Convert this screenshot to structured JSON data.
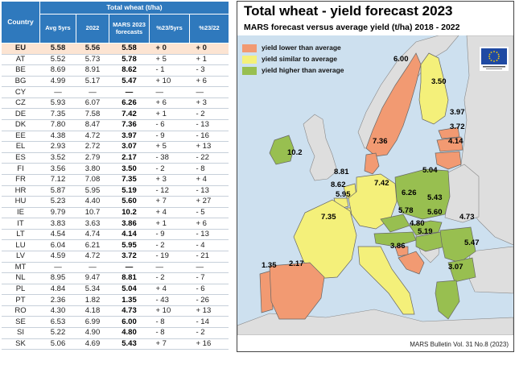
{
  "table": {
    "title": "Total wheat (t/ha)",
    "headers": {
      "country": "Country",
      "avg5": "Avg 5yrs",
      "y2022": "2022",
      "mars": "MARS 2023 forecasts",
      "pct5": "%23/5yrs",
      "pct22": "%23/22"
    }
  },
  "chart_data": {
    "type": "table",
    "title": "Total wheat (t/ha)",
    "columns": [
      "Country",
      "Avg 5yrs",
      "2022",
      "MARS 2023 forecasts",
      "%23/5yrs",
      "%23/22"
    ],
    "rows": [
      {
        "country": "EU",
        "avg5": "5.58",
        "y2022": "5.56",
        "mars": "5.58",
        "pct5": "+ 0",
        "pct22": "+ 0"
      },
      {
        "country": "AT",
        "avg5": "5.52",
        "y2022": "5.73",
        "mars": "5.78",
        "pct5": "+ 5",
        "pct22": "+ 1"
      },
      {
        "country": "BE",
        "avg5": "8.69",
        "y2022": "8.91",
        "mars": "8.62",
        "pct5": "- 1",
        "pct22": "- 3"
      },
      {
        "country": "BG",
        "avg5": "4.99",
        "y2022": "5.17",
        "mars": "5.47",
        "pct5": "+ 10",
        "pct22": "+ 6"
      },
      {
        "country": "CY",
        "avg5": "—",
        "y2022": "—",
        "mars": "—",
        "pct5": "—",
        "pct22": "—"
      },
      {
        "country": "CZ",
        "avg5": "5.93",
        "y2022": "6.07",
        "mars": "6.26",
        "pct5": "+ 6",
        "pct22": "+ 3"
      },
      {
        "country": "DE",
        "avg5": "7.35",
        "y2022": "7.58",
        "mars": "7.42",
        "pct5": "+ 1",
        "pct22": "- 2"
      },
      {
        "country": "DK",
        "avg5": "7.80",
        "y2022": "8.47",
        "mars": "7.36",
        "pct5": "- 6",
        "pct22": "- 13"
      },
      {
        "country": "EE",
        "avg5": "4.38",
        "y2022": "4.72",
        "mars": "3.97",
        "pct5": "- 9",
        "pct22": "- 16"
      },
      {
        "country": "EL",
        "avg5": "2.93",
        "y2022": "2.72",
        "mars": "3.07",
        "pct5": "+ 5",
        "pct22": "+ 13"
      },
      {
        "country": "ES",
        "avg5": "3.52",
        "y2022": "2.79",
        "mars": "2.17",
        "pct5": "- 38",
        "pct22": "- 22"
      },
      {
        "country": "FI",
        "avg5": "3.56",
        "y2022": "3.80",
        "mars": "3.50",
        "pct5": "- 2",
        "pct22": "- 8"
      },
      {
        "country": "FR",
        "avg5": "7.12",
        "y2022": "7.08",
        "mars": "7.35",
        "pct5": "+ 3",
        "pct22": "+ 4"
      },
      {
        "country": "HR",
        "avg5": "5.87",
        "y2022": "5.95",
        "mars": "5.19",
        "pct5": "- 12",
        "pct22": "- 13"
      },
      {
        "country": "HU",
        "avg5": "5.23",
        "y2022": "4.40",
        "mars": "5.60",
        "pct5": "+ 7",
        "pct22": "+ 27"
      },
      {
        "country": "IE",
        "avg5": "9.79",
        "y2022": "10.7",
        "mars": "10.2",
        "pct5": "+ 4",
        "pct22": "- 5"
      },
      {
        "country": "IT",
        "avg5": "3.83",
        "y2022": "3.63",
        "mars": "3.86",
        "pct5": "+ 1",
        "pct22": "+ 6"
      },
      {
        "country": "LT",
        "avg5": "4.54",
        "y2022": "4.74",
        "mars": "4.14",
        "pct5": "- 9",
        "pct22": "- 13"
      },
      {
        "country": "LU",
        "avg5": "6.04",
        "y2022": "6.21",
        "mars": "5.95",
        "pct5": "- 2",
        "pct22": "- 4"
      },
      {
        "country": "LV",
        "avg5": "4.59",
        "y2022": "4.72",
        "mars": "3.72",
        "pct5": "- 19",
        "pct22": "- 21"
      },
      {
        "country": "MT",
        "avg5": "—",
        "y2022": "—",
        "mars": "—",
        "pct5": "—",
        "pct22": "—"
      },
      {
        "country": "NL",
        "avg5": "8.95",
        "y2022": "9.47",
        "mars": "8.81",
        "pct5": "- 2",
        "pct22": "- 7"
      },
      {
        "country": "PL",
        "avg5": "4.84",
        "y2022": "5.34",
        "mars": "5.04",
        "pct5": "+ 4",
        "pct22": "- 6"
      },
      {
        "country": "PT",
        "avg5": "2.36",
        "y2022": "1.82",
        "mars": "1.35",
        "pct5": "- 43",
        "pct22": "- 26"
      },
      {
        "country": "RO",
        "avg5": "4.30",
        "y2022": "4.18",
        "mars": "4.73",
        "pct5": "+ 10",
        "pct22": "+ 13"
      },
      {
        "country": "SE",
        "avg5": "6.53",
        "y2022": "6.99",
        "mars": "6.00",
        "pct5": "- 8",
        "pct22": "- 14"
      },
      {
        "country": "SI",
        "avg5": "5.22",
        "y2022": "4.90",
        "mars": "4.80",
        "pct5": "- 8",
        "pct22": "- 2"
      },
      {
        "country": "SK",
        "avg5": "5.06",
        "y2022": "4.69",
        "mars": "5.43",
        "pct5": "+ 7",
        "pct22": "+ 16"
      }
    ]
  },
  "map": {
    "title": "Total wheat - yield forecast 2023",
    "subtitle": "MARS forecast versus average yield (t/ha) 2018 - 2022",
    "source": "MARS Bulletin Vol. 31 No.8 (2023)",
    "legend": [
      {
        "label": "yield lower than average",
        "color": "#f29a72"
      },
      {
        "label": "yield similar to average",
        "color": "#f4f07a"
      },
      {
        "label": "yield higher than average",
        "color": "#98bf50"
      }
    ],
    "colors": {
      "sea": "#cde0ef",
      "non_eu": "#dedede",
      "border": "#666666",
      "positive": "#1a3fd6",
      "negative": "#e02222"
    },
    "flag_icon": "eu-flag-icon",
    "country_labels": [
      {
        "code": "SE",
        "value": "6.00",
        "cls": "lower"
      },
      {
        "code": "FI",
        "value": "3.50",
        "cls": "similar"
      },
      {
        "code": "EE",
        "value": "3.97",
        "cls": "lower"
      },
      {
        "code": "LV",
        "value": "3.72",
        "cls": "lower"
      },
      {
        "code": "LT",
        "value": "4.14",
        "cls": "lower"
      },
      {
        "code": "DK",
        "value": "7.36",
        "cls": "lower"
      },
      {
        "code": "IE",
        "value": "10.2",
        "cls": "higher"
      },
      {
        "code": "NL",
        "value": "8.81",
        "cls": "similar"
      },
      {
        "code": "BE",
        "value": "8.62",
        "cls": "similar"
      },
      {
        "code": "LU",
        "value": "5.95",
        "cls": "similar"
      },
      {
        "code": "DE",
        "value": "7.42",
        "cls": "similar"
      },
      {
        "code": "PL",
        "value": "5.04",
        "cls": "higher"
      },
      {
        "code": "CZ",
        "value": "6.26",
        "cls": "higher"
      },
      {
        "code": "SK",
        "value": "5.43",
        "cls": "higher"
      },
      {
        "code": "AT",
        "value": "5.78",
        "cls": "higher"
      },
      {
        "code": "HU",
        "value": "5.60",
        "cls": "higher"
      },
      {
        "code": "SI",
        "value": "4.80",
        "cls": "lower"
      },
      {
        "code": "HR",
        "value": "5.19",
        "cls": "lower"
      },
      {
        "code": "RO",
        "value": "4.73",
        "cls": "higher"
      },
      {
        "code": "BG",
        "value": "5.47",
        "cls": "higher"
      },
      {
        "code": "FR",
        "value": "7.35",
        "cls": "similar"
      },
      {
        "code": "IT",
        "value": "3.86",
        "cls": "similar"
      },
      {
        "code": "PT",
        "value": "1.35",
        "cls": "lower"
      },
      {
        "code": "ES",
        "value": "2.17",
        "cls": "lower"
      },
      {
        "code": "EL",
        "value": "3.07",
        "cls": "higher"
      }
    ]
  }
}
